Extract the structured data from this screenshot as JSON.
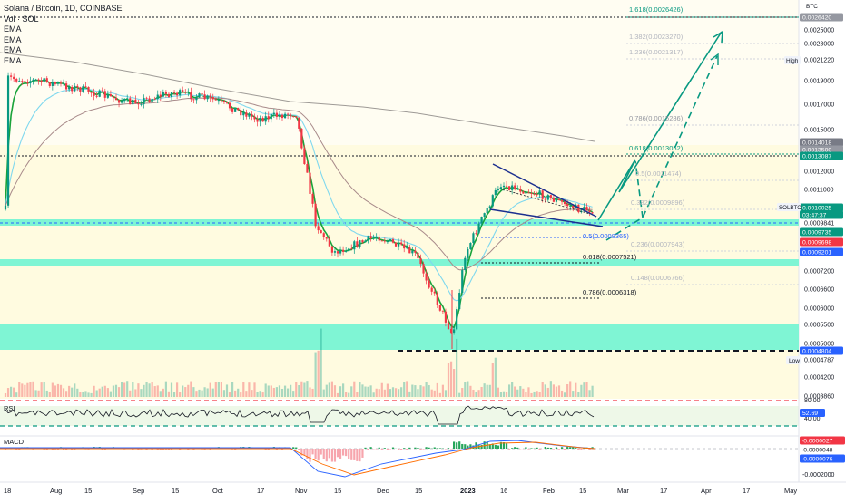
{
  "header": {
    "title": "Solana / Bitcoin, 1D, COINBASE",
    "indicators": [
      "Vol · SOL",
      "EMA",
      "EMA",
      "EMA",
      "EMA"
    ]
  },
  "price_axis": {
    "currency": "BTC",
    "ticks": [
      "0.0025000",
      "0.0023000",
      "0.0021220",
      "0.0019000",
      "0.0017000",
      "0.0015000",
      "0.0012000",
      "0.0011000",
      "0.0009841",
      "0.0007200",
      "0.0006600",
      "0.0006000",
      "0.0005500",
      "0.0005000",
      "0.0004787",
      "0.0004200",
      "0.0003860"
    ],
    "badges": [
      {
        "text": "0.0026420",
        "color": "#9598a1"
      },
      {
        "text": "0.0014018",
        "color": "#787b86"
      },
      {
        "text": "0.0013500",
        "color": "#9598a1"
      },
      {
        "text": "0.0013087",
        "color": "#089981"
      },
      {
        "text": "0.0010025",
        "color": "#089981"
      },
      {
        "text": "03:47:37",
        "color": "#089981"
      },
      {
        "text": "0.0009735",
        "color": "#089981"
      },
      {
        "text": "0.0009698",
        "color": "#f23645"
      },
      {
        "text": "0.0009201",
        "color": "#2962ff"
      },
      {
        "text": "0.0004804",
        "color": "#2962ff"
      }
    ],
    "high_label": "High",
    "low_label": "Low",
    "symbol_tag": "SOLBTC"
  },
  "fib_labels": [
    {
      "text": "1.618(0.0026426)",
      "color": "#089981"
    },
    {
      "text": "1.382(0.0023270)",
      "color": "#b2b5be"
    },
    {
      "text": "1.236(0.0021317)",
      "color": "#b2b5be"
    },
    {
      "text": "0.786(0.0015286)",
      "color": "#9598a1"
    },
    {
      "text": "0.618(0.0013052)",
      "color": "#089981"
    },
    {
      "text": "0.5(0.0011474)",
      "color": "#b2b5be"
    },
    {
      "text": "0.382(0.0009896)",
      "color": "#b2b5be"
    },
    {
      "text": "0.236(0.0007943)",
      "color": "#b2b5be"
    },
    {
      "text": "0.5(0.0008365)",
      "color": "#2962ff"
    },
    {
      "text": "0.618(0.0007521)",
      "color": "#131722"
    },
    {
      "text": "0.148(0.0006766)",
      "color": "#b2b5be"
    },
    {
      "text": "0.786(0.0006318)",
      "color": "#131722"
    }
  ],
  "rsi": {
    "label": "RSI",
    "ticks": [
      "80.00",
      "40.00"
    ],
    "value_badge": "52.69"
  },
  "macd": {
    "label": "MACD",
    "badges": [
      {
        "text": "-0.0000027",
        "color": "#f23645"
      },
      {
        "text": "-0.0000048",
        "color": "#ffffff"
      },
      {
        "text": "-0.0000076",
        "color": "#2962ff"
      }
    ],
    "ticks": [
      "-0.0002000"
    ]
  },
  "time_axis": [
    "18",
    "Aug",
    "15",
    "Sep",
    "15",
    "Oct",
    "17",
    "Nov",
    "15",
    "Dec",
    "15",
    "2023",
    "16",
    "Feb",
    "15",
    "Mar",
    "17",
    "Apr",
    "17",
    "May"
  ],
  "chart_data": {
    "type": "candlestick",
    "title": "Solana / Bitcoin, 1D, COINBASE",
    "price_range": [
      0.00038,
      0.00266
    ],
    "approx_close_path": [
      [
        "Jul 18",
        0.00193
      ],
      [
        "Aug 1",
        0.00189
      ],
      [
        "Aug 15",
        0.00182
      ],
      [
        "Sep 1",
        0.00171
      ],
      [
        "Sep 15",
        0.0018
      ],
      [
        "Oct 1",
        0.00174
      ],
      [
        "Oct 17",
        0.00158
      ],
      [
        "Nov 1",
        0.00163
      ],
      [
        "Nov 8",
        0.00097
      ],
      [
        "Nov 15",
        0.00079
      ],
      [
        "Dec 1",
        0.00085
      ],
      [
        "Dec 15",
        0.00078
      ],
      [
        "Dec 29",
        0.00052
      ],
      [
        "Jan 5",
        0.00078
      ],
      [
        "Jan 10",
        0.00092
      ],
      [
        "Jan 16",
        0.00113
      ],
      [
        "Feb 1",
        0.00107
      ],
      [
        "Feb 15",
        0.001
      ],
      [
        "Feb 21",
        0.001
      ]
    ],
    "fib_levels": [
      0.0026426,
      0.002327,
      0.0021317,
      0.0015286,
      0.0013052,
      0.0011474,
      0.0009896,
      0.0008365,
      0.0007943,
      0.0007521,
      0.0006766,
      0.0006318
    ],
    "horizontal_levels": [
      0.002642,
      0.0013087,
      0.0009841,
      0.0004804
    ],
    "zones": [
      {
        "from": 0.000965,
        "to": 0.001,
        "color": "#7ff5d4"
      },
      {
        "from": 0.000895,
        "to": 0.000925,
        "color": "#7ff5d4"
      },
      {
        "from": 0.00047,
        "to": 0.00054,
        "color": "#7ff5d4"
      }
    ],
    "current_price": 0.0010025,
    "high": 0.002122,
    "low": 0.0004787,
    "legend": "top-left",
    "grid": false
  }
}
